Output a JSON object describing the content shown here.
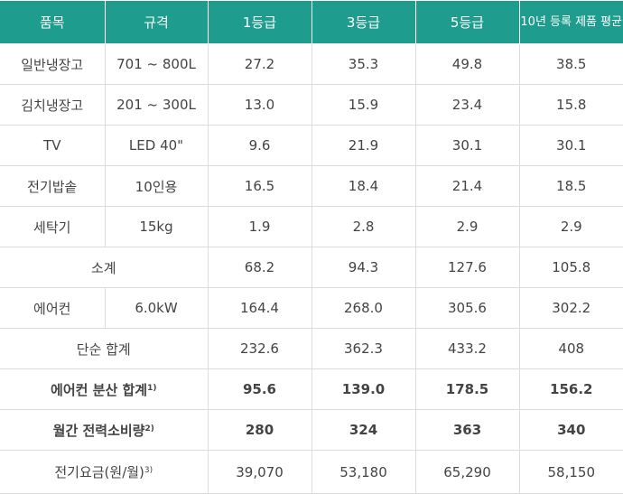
{
  "table": {
    "header": [
      "품목",
      "규격",
      "1등급",
      "3등급",
      "5등급",
      "10년 등록 제품 평균"
    ],
    "rows": [
      {
        "item": "일반냉장고",
        "spec": "701 ~ 800L",
        "values": [
          "27.2",
          "35.3",
          "49.8",
          "38.5"
        ]
      },
      {
        "item": "김치냉장고",
        "spec": "201 ~ 300L",
        "values": [
          "13.0",
          "15.9",
          "23.4",
          "15.8"
        ]
      },
      {
        "item": "TV",
        "spec": "LED 40\"",
        "values": [
          "9.6",
          "21.9",
          "30.1",
          "30.1"
        ]
      },
      {
        "item": "전기밥솥",
        "spec": "10인용",
        "values": [
          "16.5",
          "18.4",
          "21.4",
          "18.5"
        ]
      },
      {
        "item": "세탁기",
        "spec": "15kg",
        "values": [
          "1.9",
          "2.8",
          "2.9",
          "2.9"
        ]
      },
      {
        "item": "소계",
        "values": [
          "68.2",
          "94.3",
          "127.6",
          "105.8"
        ]
      },
      {
        "item": "에어컨",
        "spec": "6.0kW",
        "values": [
          "164.4",
          "268.0",
          "305.6",
          "302.2"
        ]
      },
      {
        "item": "단순 합계",
        "values": [
          "232.6",
          "362.3",
          "433.2",
          "408"
        ]
      },
      {
        "item": "에어컨 분산 합계",
        "note": "1)",
        "values": [
          "95.6",
          "139.0",
          "178.5",
          "156.2"
        ]
      },
      {
        "item": "월간 전력소비량",
        "note": "2)",
        "values": [
          "280",
          "324",
          "363",
          "340"
        ]
      },
      {
        "item": "전기요금(원/월)",
        "note": "3)",
        "values": [
          "39,070",
          "53,180",
          "65,290",
          "58,150"
        ]
      }
    ]
  }
}
